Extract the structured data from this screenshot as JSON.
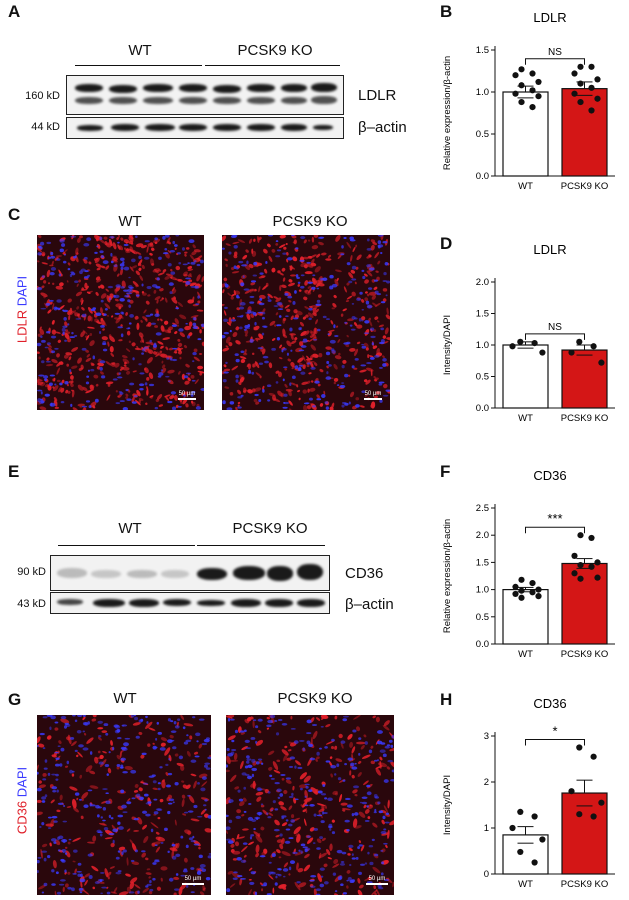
{
  "panels": {
    "A": {
      "letter": "A",
      "groups": [
        "WT",
        "PCSK9 KO"
      ],
      "markers": [
        "160 kD",
        "44 kD"
      ],
      "proteins": [
        "LDLR",
        "β–actin"
      ]
    },
    "C": {
      "letter": "C",
      "groups": [
        "WT",
        "PCSK9 KO"
      ],
      "stain_red": "LDLR",
      "stain_blue": "DAPI",
      "scale": "50 µm"
    },
    "E": {
      "letter": "E",
      "groups": [
        "WT",
        "PCSK9 KO"
      ],
      "markers": [
        "90 kD",
        "43 kD"
      ],
      "proteins": [
        "CD36",
        "β–actin"
      ]
    },
    "G": {
      "letter": "G",
      "groups": [
        "WT",
        "PCSK9 KO"
      ],
      "stain_red": "CD36",
      "stain_blue": "DAPI",
      "scale": "50 µm"
    }
  },
  "colors": {
    "wt_bar": "#ffffff",
    "ko_bar": "#d41616",
    "red_stain": "#e0202a",
    "blue_stain": "#3a3aff"
  },
  "chart_data": [
    {
      "letter": "B",
      "type": "bar",
      "title": "LDLR",
      "ylabel": "Relative expression/β-actin",
      "categories": [
        "WT",
        "PCSK9 KO"
      ],
      "values": [
        1.0,
        1.04
      ],
      "sem": [
        0.07,
        0.08
      ],
      "ylim": [
        0,
        1.5
      ],
      "yticks": [
        "0.0",
        "0.5",
        "1.0",
        "1.5"
      ],
      "ytick_values": [
        0,
        0.5,
        1.0,
        1.5
      ],
      "significance": "NS",
      "points": [
        [
          1.27,
          1.22,
          1.2,
          1.12,
          1.08,
          1.02,
          0.98,
          0.95,
          0.88,
          0.82
        ],
        [
          1.3,
          1.3,
          1.22,
          1.15,
          1.1,
          1.05,
          0.98,
          0.92,
          0.88,
          0.78
        ]
      ]
    },
    {
      "letter": "D",
      "type": "bar",
      "title": "LDLR",
      "ylabel": "Intensity/DAPI",
      "categories": [
        "WT",
        "PCSK9 KO"
      ],
      "values": [
        1.0,
        0.92
      ],
      "sem": [
        0.05,
        0.08
      ],
      "ylim": [
        0,
        2.0
      ],
      "yticks": [
        "0.0",
        "0.5",
        "1.0",
        "1.5",
        "2.0"
      ],
      "ytick_values": [
        0,
        0.5,
        1.0,
        1.5,
        2.0
      ],
      "significance": "NS",
      "points": [
        [
          1.05,
          1.03,
          0.98,
          0.88
        ],
        [
          1.05,
          0.98,
          0.88,
          0.72
        ]
      ]
    },
    {
      "letter": "F",
      "type": "bar",
      "title": "CD36",
      "ylabel": "Relative expression/β-actin",
      "categories": [
        "WT",
        "PCSK9 KO"
      ],
      "values": [
        1.0,
        1.48
      ],
      "sem": [
        0.04,
        0.09
      ],
      "ylim": [
        0,
        2.5
      ],
      "yticks": [
        "0.0",
        "0.5",
        "1.0",
        "1.5",
        "2.0",
        "2.5"
      ],
      "ytick_values": [
        0,
        0.5,
        1.0,
        1.5,
        2.0,
        2.5
      ],
      "significance": "***",
      "points": [
        [
          1.18,
          1.12,
          1.05,
          1.0,
          0.98,
          0.95,
          0.92,
          0.88,
          0.85
        ],
        [
          2.0,
          1.95,
          1.62,
          1.5,
          1.45,
          1.42,
          1.3,
          1.22,
          1.2
        ]
      ]
    },
    {
      "letter": "H",
      "type": "bar",
      "title": "CD36",
      "ylabel": "Intensity/DAPI",
      "categories": [
        "WT",
        "PCSK9 KO"
      ],
      "values": [
        0.85,
        1.76
      ],
      "sem": [
        0.18,
        0.28
      ],
      "ylim": [
        0,
        3
      ],
      "yticks": [
        "0",
        "1",
        "2",
        "3"
      ],
      "ytick_values": [
        0,
        1,
        2,
        3
      ],
      "significance": "*",
      "points": [
        [
          1.35,
          1.25,
          1.0,
          0.75,
          0.48,
          0.25
        ],
        [
          2.75,
          2.55,
          1.8,
          1.55,
          1.3,
          1.25
        ]
      ]
    }
  ]
}
